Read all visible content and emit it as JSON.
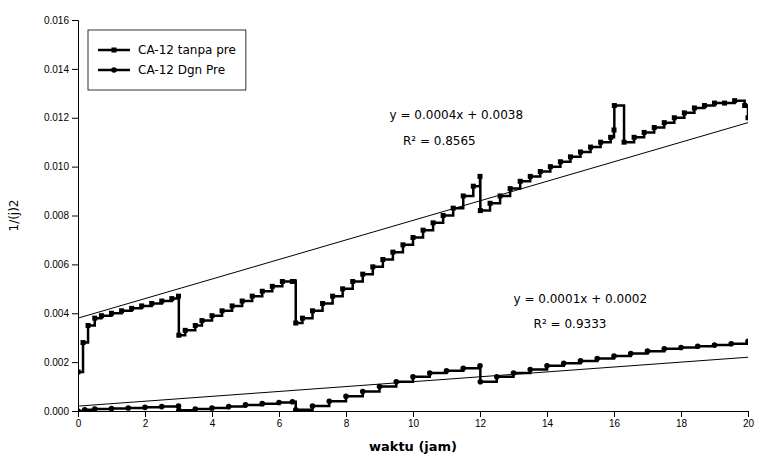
{
  "chart_data": {
    "type": "line",
    "xlabel": "waktu (jam)",
    "ylabel": "1/(j)2",
    "xlim": [
      0,
      20
    ],
    "ylim": [
      0,
      0.016
    ],
    "xticks": [
      0,
      2,
      4,
      6,
      8,
      10,
      12,
      14,
      16,
      18,
      20
    ],
    "yticks": [
      {
        "value": 0,
        "label": "0.000"
      },
      {
        "value": 0.002,
        "label": "0.002"
      },
      {
        "value": 0.004,
        "label": "0.004"
      },
      {
        "value": 0.006,
        "label": "0.006"
      },
      {
        "value": 0.008,
        "label": "0.008"
      },
      {
        "value": 0.01,
        "label": "0.010"
      },
      {
        "value": 0.012,
        "label": "0.012"
      },
      {
        "value": 0.014,
        "label": "0.014"
      },
      {
        "value": 0.016,
        "label": "0.016"
      }
    ],
    "grid": false,
    "legend": "upper left",
    "series": [
      {
        "name": "CA-12 tanpa pre",
        "color": "#000000",
        "marker": "square",
        "line_style": "steps",
        "x": [
          0.0,
          0.15,
          0.3,
          0.5,
          0.7,
          1.0,
          1.3,
          1.6,
          1.9,
          2.2,
          2.5,
          2.8,
          3.0,
          3.01,
          3.2,
          3.5,
          3.7,
          4.0,
          4.3,
          4.6,
          4.9,
          5.2,
          5.5,
          5.8,
          6.1,
          6.4,
          6.45,
          6.5,
          6.7,
          7.0,
          7.3,
          7.6,
          7.9,
          8.2,
          8.5,
          8.8,
          9.1,
          9.4,
          9.7,
          10.0,
          10.3,
          10.6,
          10.9,
          11.2,
          11.5,
          11.8,
          12.0,
          12.01,
          12.3,
          12.6,
          12.9,
          13.2,
          13.5,
          13.8,
          14.1,
          14.4,
          14.7,
          15.0,
          15.3,
          15.6,
          15.9,
          16.0,
          16.01,
          16.3,
          16.6,
          16.9,
          17.2,
          17.5,
          17.8,
          18.1,
          18.4,
          18.7,
          19.0,
          19.3,
          19.6,
          19.9,
          20.0
        ],
        "values": [
          0.0016,
          0.0028,
          0.0035,
          0.0038,
          0.0039,
          0.004,
          0.0041,
          0.0042,
          0.0043,
          0.0044,
          0.0045,
          0.0046,
          0.0047,
          0.0031,
          0.0033,
          0.0035,
          0.0037,
          0.0039,
          0.0041,
          0.0043,
          0.0045,
          0.0047,
          0.0049,
          0.0051,
          0.0053,
          0.0053,
          0.0053,
          0.0036,
          0.0038,
          0.0041,
          0.0044,
          0.0047,
          0.005,
          0.0053,
          0.0056,
          0.0059,
          0.0062,
          0.0065,
          0.0068,
          0.0071,
          0.0074,
          0.0077,
          0.008,
          0.0083,
          0.0088,
          0.0092,
          0.0096,
          0.0082,
          0.0085,
          0.0088,
          0.0091,
          0.0094,
          0.0096,
          0.0098,
          0.01,
          0.0102,
          0.0104,
          0.0106,
          0.0108,
          0.011,
          0.0112,
          0.0115,
          0.0125,
          0.011,
          0.0112,
          0.0114,
          0.0116,
          0.0118,
          0.012,
          0.0122,
          0.0124,
          0.0125,
          0.0126,
          0.0126,
          0.0127,
          0.0125,
          0.012
        ]
      },
      {
        "name": "CA-12 Dgn Pre",
        "color": "#000000",
        "marker": "circle",
        "line_style": "steps",
        "x": [
          0.0,
          0.2,
          0.5,
          1.0,
          1.5,
          2.0,
          2.5,
          3.0,
          3.01,
          3.5,
          4.0,
          4.5,
          5.0,
          5.5,
          6.0,
          6.4,
          6.5,
          7.0,
          7.5,
          8.0,
          8.5,
          9.0,
          9.5,
          10.0,
          10.5,
          11.0,
          11.5,
          12.0,
          12.01,
          12.5,
          13.0,
          13.5,
          14.0,
          14.5,
          15.0,
          15.5,
          16.0,
          16.5,
          17.0,
          17.5,
          18.0,
          18.5,
          19.0,
          19.5,
          20.0
        ],
        "values": [
          0.0,
          5e-05,
          8e-05,
          0.0001,
          0.00012,
          0.00015,
          0.00018,
          0.0002,
          3e-05,
          8e-05,
          0.00012,
          0.00018,
          0.00025,
          0.0003,
          0.00035,
          0.00038,
          5e-05,
          0.0002,
          0.0004,
          0.0006,
          0.0008,
          0.001,
          0.0012,
          0.0014,
          0.00155,
          0.00165,
          0.00175,
          0.00185,
          0.0012,
          0.0014,
          0.00155,
          0.0017,
          0.00185,
          0.00195,
          0.00205,
          0.00215,
          0.00225,
          0.00235,
          0.00245,
          0.00255,
          0.0026,
          0.00265,
          0.0027,
          0.00275,
          0.00285
        ]
      },
      {
        "color": "#000000",
        "marker": "none",
        "line_style": "solid",
        "x": [
          0,
          20
        ],
        "values": [
          0.0038,
          0.0118
        ]
      },
      {
        "color": "#000000",
        "marker": "none",
        "line_style": "solid",
        "x": [
          0,
          20
        ],
        "values": [
          0.0002,
          0.0022
        ]
      }
    ],
    "annotations": [
      "y = 0.0004x + 0.0038",
      "R² = 0.8565",
      "y = 0.0001x + 0.0002",
      "R² = 0.9333"
    ]
  }
}
